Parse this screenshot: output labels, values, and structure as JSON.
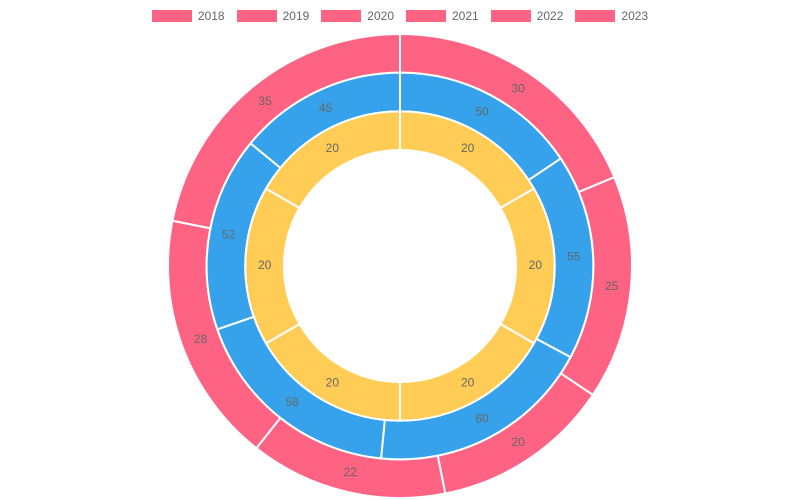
{
  "chart_data": {
    "type": "pie",
    "variant": "multi-ring doughnut",
    "legend_position": "top",
    "categories": [
      "2018",
      "2019",
      "2020",
      "2021",
      "2022",
      "2023"
    ],
    "series": [
      {
        "color": "#ff6384",
        "values": [
          30,
          25,
          20,
          22,
          28,
          35
        ]
      },
      {
        "color": "#36a2eb",
        "values": [
          50,
          55,
          60,
          58,
          52,
          45
        ]
      },
      {
        "color": "#ffcd56",
        "values": [
          20,
          20,
          20,
          20,
          20,
          20
        ]
      }
    ],
    "legend": [
      {
        "label": "2018",
        "color": "#ff6384"
      },
      {
        "label": "2019",
        "color": "#ff6384"
      },
      {
        "label": "2020",
        "color": "#ff6384"
      },
      {
        "label": "2021",
        "color": "#ff6384"
      },
      {
        "label": "2022",
        "color": "#ff6384"
      },
      {
        "label": "2023",
        "color": "#ff6384"
      }
    ]
  }
}
